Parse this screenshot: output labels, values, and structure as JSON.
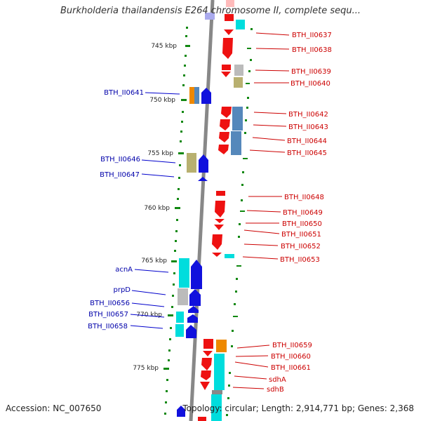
{
  "title": "Burkholderia thailandensis E264 chromosome II, complete sequ...",
  "footer": {
    "accession": "Accession: NC_007650",
    "summary": "Topology: circular; Length: 2,914,771 bp; Genes: 2,368"
  },
  "colors": {
    "backbone": "#888888",
    "forward_strand": "#ee1111",
    "reverse_strand": "#1111dd",
    "tick": "#118811"
  },
  "scale_labels": [
    "745 kbp",
    "750 kbp",
    "755 kbp",
    "760 kbp",
    "765 kbp",
    "770 kbp",
    "775 kbp"
  ],
  "right_genes": [
    "BTH_II0637",
    "BTH_II0638",
    "BTH_II0639",
    "BTH_II0640",
    "BTH_II0642",
    "BTH_II0643",
    "BTH_II0644",
    "BTH_II0645",
    "BTH_II0648",
    "BTH_II0649",
    "BTH_II0650",
    "BTH_II0651",
    "BTH_II0652",
    "BTH_II0653",
    "BTH_II0659",
    "BTH_II0660",
    "BTH_II0661",
    "sdhA",
    "sdhB"
  ],
  "left_genes": [
    "BTH_II0641",
    "BTH_II0646",
    "BTH_II0647",
    "acnA",
    "prpD",
    "BTH_II0656",
    "BTH_II0657",
    "BTH_II0658"
  ]
}
